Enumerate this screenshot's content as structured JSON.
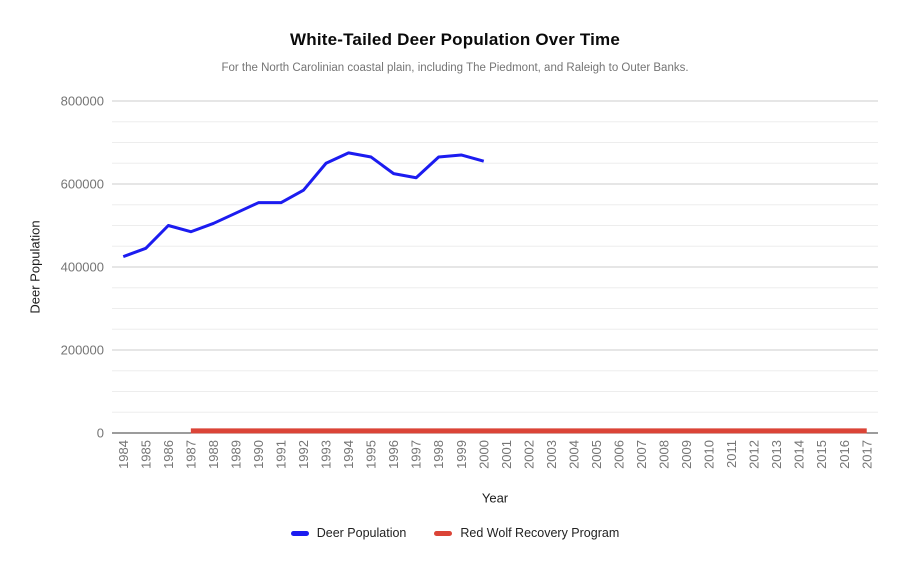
{
  "chart_data": {
    "type": "line",
    "title": "White-Tailed Deer Population Over Time",
    "subtitle": "For the North Carolinian coastal plain, including The Piedmont, and Raleigh to Outer Banks.",
    "xlabel": "Year",
    "ylabel": "Deer Population",
    "ylim": [
      0,
      800000
    ],
    "ytick_major": 200000,
    "ytick_minor": 50000,
    "grid": true,
    "legend_position": "bottom",
    "categories": [
      "1984",
      "1985",
      "1986",
      "1987",
      "1988",
      "1989",
      "1990",
      "1991",
      "1992",
      "1993",
      "1994",
      "1995",
      "1996",
      "1997",
      "1998",
      "1999",
      "2000",
      "2001",
      "2002",
      "2003",
      "2004",
      "2005",
      "2006",
      "2007",
      "2008",
      "2009",
      "2010",
      "2011",
      "2012",
      "2013",
      "2014",
      "2015",
      "2016",
      "2017"
    ],
    "series": [
      {
        "name": "Deer Population",
        "color": "#1c1cf0",
        "line_width": 3,
        "values": [
          425000,
          445000,
          500000,
          485000,
          505000,
          530000,
          555000,
          555000,
          585000,
          650000,
          675000,
          665000,
          625000,
          615000,
          665000,
          670000,
          655000,
          null,
          null,
          null,
          null,
          null,
          null,
          null,
          null,
          null,
          null,
          null,
          null,
          null,
          null,
          null,
          null,
          null
        ]
      },
      {
        "name": "Red Wolf Recovery Program",
        "color": "#db4437",
        "line_width": 5,
        "values": [
          null,
          null,
          null,
          5000,
          5000,
          5000,
          5000,
          5000,
          5000,
          5000,
          5000,
          5000,
          5000,
          5000,
          5000,
          5000,
          5000,
          5000,
          5000,
          5000,
          5000,
          5000,
          5000,
          5000,
          5000,
          5000,
          5000,
          5000,
          5000,
          5000,
          5000,
          5000,
          5000,
          5000
        ]
      }
    ]
  }
}
